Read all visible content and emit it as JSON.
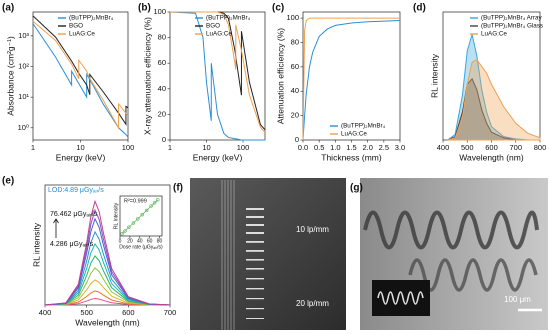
{
  "chart_data": [
    {
      "type": "line",
      "label": "(a)",
      "xlabel": "Energy (keV)",
      "ylabel": "Absorbance (cm²g⁻¹)",
      "xlog": true,
      "ylog": true,
      "xlim": [
        1,
        100
      ],
      "ylim": [
        0.4,
        6000
      ],
      "xticks": [
        1,
        10,
        100
      ],
      "yticks": [
        {
          "value": 1,
          "label": "10⁰"
        },
        {
          "value": 10,
          "label": "10¹"
        },
        {
          "value": 100,
          "label": "10²"
        },
        {
          "value": 1000,
          "label": "10³"
        }
      ],
      "legend": "upper right",
      "x": [
        1,
        3,
        6.5,
        6.5,
        9.2,
        9.2,
        13.5,
        13.5,
        15.7,
        15.7,
        30,
        63.3,
        63.3,
        90.5,
        90.5,
        100
      ],
      "series": [
        {
          "name": "(BuTPP)₂MnBr₄",
          "color": "#2b8fd6",
          "values": [
            2500,
            200,
            25,
            70,
            28,
            28,
            10,
            55,
            38,
            38,
            6,
            1,
            1,
            0.6,
            0.6,
            0.5
          ]
        },
        {
          "name": "BGO",
          "color": "#222222",
          "values": [
            4500,
            900,
            150,
            150,
            60,
            60,
            25,
            25,
            12,
            55,
            15,
            3,
            3,
            1.3,
            5,
            4.5
          ]
        },
        {
          "name": "LuAG:Ce",
          "color": "#f0a050",
          "values": [
            3000,
            700,
            120,
            120,
            40,
            160,
            70,
            70,
            40,
            40,
            8,
            1,
            6,
            3,
            3,
            2.5
          ]
        }
      ]
    },
    {
      "type": "line",
      "label": "(b)",
      "xlabel": "Energy (keV)",
      "ylabel": "X-ray attenuation efficiency (%)",
      "xlog": true,
      "xlim": [
        1,
        400
      ],
      "ylim": [
        0,
        100
      ],
      "xticks": [
        1,
        10,
        100
      ],
      "yticks": [
        0,
        20,
        40,
        60,
        80,
        100
      ],
      "legend": "upper right",
      "x": [
        1,
        5,
        8,
        10,
        13.5,
        13.5,
        20,
        30,
        40,
        60,
        63.3,
        63.3,
        90.5,
        90.5,
        150,
        300,
        400
      ],
      "series": [
        {
          "name": "(BuTPP)₂MnBr₄",
          "color": "#2b8fd6",
          "values": [
            100,
            99,
            80,
            45,
            15,
            60,
            20,
            5,
            2,
            1,
            1,
            1,
            0,
            0,
            0,
            0,
            0
          ]
        },
        {
          "name": "BGO",
          "color": "#222222",
          "values": [
            100,
            100,
            100,
            100,
            100,
            100,
            100,
            99,
            95,
            70,
            65,
            65,
            35,
            85,
            45,
            12,
            8
          ]
        },
        {
          "name": "LuAG:Ce",
          "color": "#f0a050",
          "values": [
            100,
            100,
            100,
            100,
            100,
            100,
            100,
            98,
            90,
            60,
            55,
            90,
            70,
            70,
            35,
            10,
            6
          ]
        }
      ]
    },
    {
      "type": "line",
      "label": "(c)",
      "xlabel": "Thickness (mm)",
      "ylabel": "Attenuation efficiency (%)",
      "xlim": [
        0,
        3
      ],
      "ylim": [
        0,
        105
      ],
      "xticks": [
        {
          "value": 0,
          "label": "0.0"
        },
        {
          "value": 0.5,
          "label": "0.5"
        },
        {
          "value": 1,
          "label": "1.0"
        },
        {
          "value": 1.5,
          "label": "1.5"
        },
        {
          "value": 2,
          "label": "2.0"
        },
        {
          "value": 2.5,
          "label": "2.5"
        },
        {
          "value": 3,
          "label": "3.0"
        }
      ],
      "yticks": [
        0,
        20,
        40,
        60,
        80,
        100
      ],
      "legend": "lower right",
      "x": [
        0,
        0.05,
        0.1,
        0.2,
        0.3,
        0.5,
        0.75,
        1,
        1.5,
        2,
        2.5,
        3
      ],
      "series": [
        {
          "name": "(BuTPP)₂MnBr₄",
          "color": "#2b8fd6",
          "values": [
            0,
            20,
            38,
            60,
            72,
            85,
            91,
            94,
            96,
            97,
            97.5,
            98
          ]
        },
        {
          "name": "LuAG:Ce",
          "color": "#f0a050",
          "values": [
            0,
            90,
            98,
            100,
            100,
            100,
            100,
            100,
            100,
            100,
            100,
            100
          ]
        }
      ]
    },
    {
      "type": "area",
      "label": "(d)",
      "xlabel": "Wavelength (nm)",
      "ylabel": "RL intensity",
      "xlim": [
        400,
        800
      ],
      "ylim": [
        0,
        1.15
      ],
      "xticks": [
        400,
        500,
        600,
        700,
        800
      ],
      "yticks": [],
      "legend": "upper right",
      "x": [
        420,
        450,
        480,
        500,
        520,
        540,
        560,
        580,
        600,
        650,
        700,
        750,
        800
      ],
      "series": [
        {
          "name": "(BuTPP)₂MnBr₄ Array",
          "color": "#3aa6d8",
          "values": [
            0,
            0.05,
            0.4,
            0.8,
            0.95,
            0.75,
            0.45,
            0.25,
            0.12,
            0.03,
            0.01,
            0,
            0
          ]
        },
        {
          "name": "(BuTPP)₂MnBr₄ Glass",
          "color": "#444444",
          "values": [
            0,
            0.03,
            0.25,
            0.5,
            0.55,
            0.45,
            0.27,
            0.15,
            0.07,
            0.02,
            0,
            0,
            0
          ]
        },
        {
          "name": "LuAG:Ce",
          "color": "#f0a050",
          "values": [
            0,
            0.02,
            0.2,
            0.5,
            0.7,
            0.72,
            0.66,
            0.6,
            0.5,
            0.3,
            0.15,
            0.06,
            0.02
          ]
        }
      ]
    },
    {
      "type": "line",
      "label": "(e)",
      "xlabel": "Wavelength (nm)",
      "ylabel": "RL intensity",
      "xlim": [
        400,
        700
      ],
      "ylim": [
        0,
        1.1
      ],
      "xticks": [
        400,
        500,
        600,
        700
      ],
      "yticks": [],
      "annotations": [
        "LOD:4.89 μGyₐᵢᵣ/s",
        "76.462 μGyₐᵢᵣ/s",
        "4.286 μGyₐᵢᵣ/s"
      ],
      "x": [
        400,
        450,
        480,
        500,
        510,
        520,
        530,
        540,
        560,
        600,
        650,
        700
      ],
      "series": [
        {
          "color": "#e84b8a",
          "values": [
            0,
            0.002,
            0.012,
            0.036,
            0.051,
            0.06,
            0.054,
            0.042,
            0.021,
            0.005,
            0.001,
            0
          ]
        },
        {
          "color": "#e6772e",
          "values": [
            0,
            0.003,
            0.026,
            0.078,
            0.11,
            0.13,
            0.117,
            0.091,
            0.046,
            0.01,
            0.001,
            0
          ]
        },
        {
          "color": "#d9b52a",
          "values": [
            0,
            0.005,
            0.046,
            0.138,
            0.196,
            0.23,
            0.207,
            0.161,
            0.081,
            0.018,
            0.002,
            0
          ]
        },
        {
          "color": "#8cc63f",
          "values": [
            0,
            0.007,
            0.068,
            0.204,
            0.289,
            0.34,
            0.306,
            0.238,
            0.119,
            0.027,
            0.003,
            0
          ]
        },
        {
          "color": "#2fb36b",
          "values": [
            0,
            0.009,
            0.09,
            0.27,
            0.383,
            0.45,
            0.405,
            0.315,
            0.158,
            0.036,
            0.005,
            0
          ]
        },
        {
          "color": "#1fb5b0",
          "values": [
            0,
            0.011,
            0.112,
            0.336,
            0.476,
            0.56,
            0.504,
            0.392,
            0.196,
            0.045,
            0.006,
            0
          ]
        },
        {
          "color": "#2d8fd6",
          "values": [
            0,
            0.013,
            0.134,
            0.402,
            0.57,
            0.67,
            0.603,
            0.469,
            0.235,
            0.054,
            0.007,
            0
          ]
        },
        {
          "color": "#4a5fc8",
          "values": [
            0,
            0.016,
            0.158,
            0.474,
            0.672,
            0.79,
            0.711,
            0.553,
            0.277,
            0.063,
            0.008,
            0
          ]
        },
        {
          "color": "#8a4cc2",
          "values": [
            0,
            0.017,
            0.174,
            0.522,
            0.74,
            0.87,
            0.783,
            0.609,
            0.305,
            0.07,
            0.009,
            0
          ]
        },
        {
          "color": "#c2418e",
          "values": [
            0,
            0.019,
            0.19,
            0.57,
            0.808,
            0.95,
            0.855,
            0.665,
            0.333,
            0.076,
            0.01,
            0
          ]
        }
      ]
    },
    {
      "type": "scatter",
      "xlabel": "Dose rate (μGyₐᵢᵣ/s)",
      "ylabel": "RL Intensity",
      "fit_line": true,
      "xlim": [
        0,
        85
      ],
      "ylim": [
        0,
        1.05
      ],
      "xticks": [
        0,
        20,
        40,
        60,
        80
      ],
      "yticks": [],
      "annotations": [
        "R²=0.999"
      ],
      "color": "#5ab35a",
      "x": [
        4.286,
        10,
        18,
        27,
        36,
        45,
        54,
        63,
        70,
        76.462
      ],
      "values": [
        0.06,
        0.13,
        0.23,
        0.34,
        0.45,
        0.56,
        0.67,
        0.79,
        0.87,
        0.95
      ]
    }
  ],
  "images": [
    {
      "label": "(f)",
      "texts": [
        "10 lp/mm",
        "20 lp/mm"
      ]
    },
    {
      "label": "(g)",
      "texts": [
        "100 μm"
      ]
    }
  ]
}
